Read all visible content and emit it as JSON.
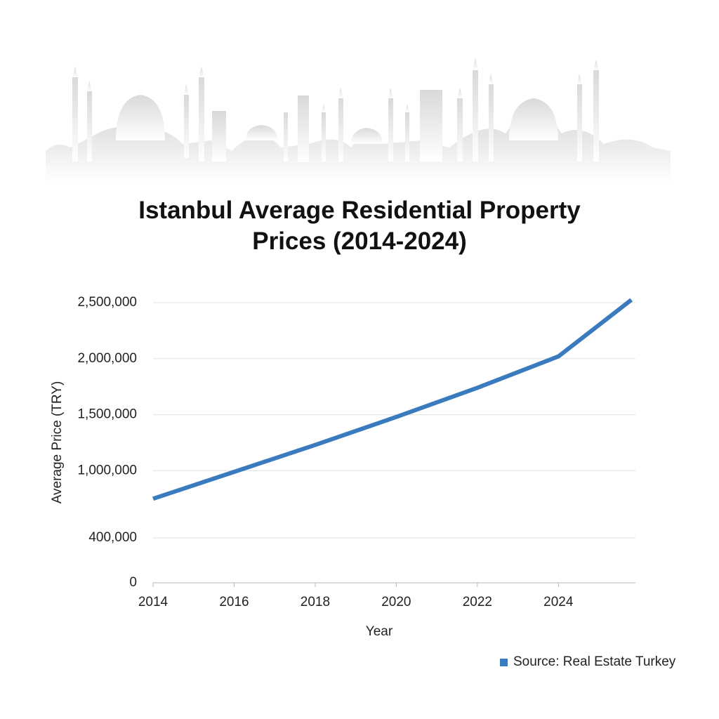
{
  "chart_data": {
    "type": "line",
    "title": "Istanbul Average Residential Property Prices (2014-2024)",
    "x_label": "Year",
    "y_label": "Average Price (TRY)",
    "x": [
      2014,
      2016,
      2018,
      2020,
      2022,
      2024,
      2025.8
    ],
    "series": [
      {
        "name": "Source: Real Estate Turkey",
        "color": "#3a7bbf",
        "values": [
          750000,
          990000,
          1230000,
          1480000,
          1740000,
          2020000,
          2525000
        ]
      }
    ],
    "xlim": [
      2014,
      2025.9
    ],
    "xticks": [
      2014,
      2016,
      2018,
      2020,
      2022,
      2024
    ],
    "ylim": [
      0,
      2500000
    ],
    "yticks": [
      0,
      {
        "value": 400000,
        "label": "400,000"
      },
      {
        "value": 1000000,
        "label": "1,000,000"
      },
      {
        "value": 1500000,
        "label": "1,500,000"
      },
      {
        "value": 2000000,
        "label": "2,000,000"
      },
      {
        "value": 2500000,
        "label": "2,500,000"
      }
    ],
    "grid": true,
    "legend": "bottom-right"
  }
}
